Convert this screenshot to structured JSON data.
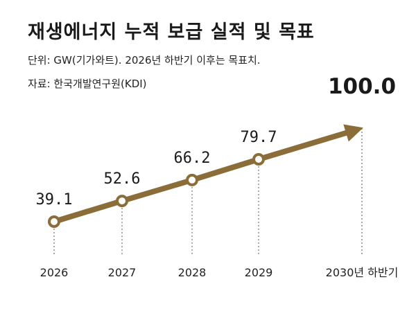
{
  "header": {
    "title": "재생에너지 누적 보급 실적 및 목표",
    "unit_note": "단위: GW(기가와트). 2026년 하반기 이후는 목표치.",
    "source_note": "자료: 한국개발연구원(KDI)"
  },
  "colors": {
    "line": "#8b6d3a",
    "marker_fill": "#ffffff",
    "guide": "#555555",
    "text": "#1a1a1a"
  },
  "chart_data": {
    "type": "line",
    "categories": [
      "2026",
      "2027",
      "2028",
      "2029",
      "2030년 하반기"
    ],
    "values": [
      39.1,
      52.6,
      66.2,
      79.7,
      100.0
    ],
    "value_labels": [
      "39.1",
      "52.6",
      "66.2",
      "79.7",
      "100.0"
    ],
    "title": "재생에너지 누적 보급 실적 및 목표",
    "xlabel": "",
    "ylabel": "",
    "ylim": [
      30,
      105
    ],
    "grid": false,
    "legend": "none",
    "last_point_style": "arrow"
  }
}
